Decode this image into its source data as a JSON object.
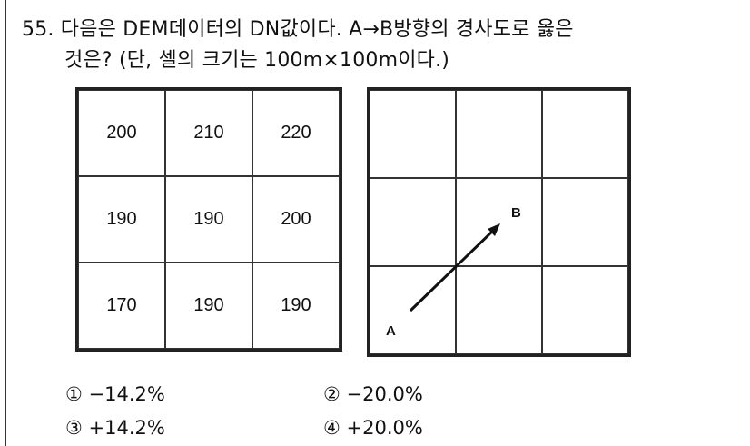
{
  "question": {
    "line1": "55. 다음은 DEM데이터의 DN값이다. A→B방향의 경사도로 옳은",
    "line2": "것은? (단, 셀의 크기는 100m×100m이다.)"
  },
  "dem_grid": [
    [
      "200",
      "210",
      "220"
    ],
    [
      "190",
      "190",
      "200"
    ],
    [
      "170",
      "190",
      "190"
    ]
  ],
  "direction_grid": {
    "start_label": "A",
    "end_label": "B"
  },
  "options": [
    {
      "label": "① −14.2%"
    },
    {
      "label": "② −20.0%"
    },
    {
      "label": "③ +14.2%"
    },
    {
      "label": "④ +20.0%"
    }
  ]
}
